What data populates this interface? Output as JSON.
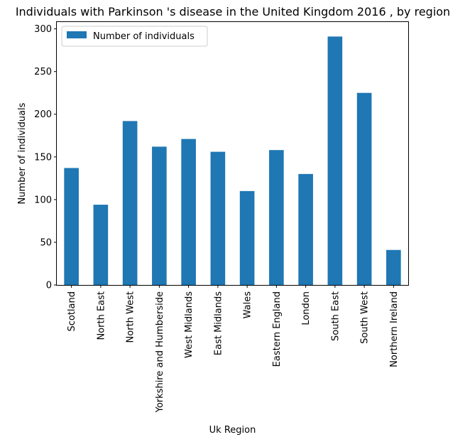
{
  "chart_data": {
    "type": "bar",
    "title": "Individuals with Parkinson 's disease in the United Kingdom 2016 , by region",
    "xlabel": "Uk Region",
    "ylabel": "Number of individuals",
    "categories": [
      "Scotland",
      "North East",
      "North West",
      "Yorkshire and Humberside",
      "West Midlands",
      "East Midlands",
      "Wales",
      "Eastern England",
      "London",
      "South East",
      "South West",
      "Northern Ireland"
    ],
    "series": [
      {
        "name": "Number of individuals",
        "values": [
          137,
          94,
          192,
          162,
          171,
          156,
          110,
          158,
          130,
          291,
          225,
          41
        ],
        "color": "#1f77b4"
      }
    ],
    "ylim": [
      0,
      308
    ],
    "yticks": [
      0,
      50,
      100,
      150,
      200,
      250,
      300
    ],
    "grid": false,
    "legend_position": "top-left"
  }
}
